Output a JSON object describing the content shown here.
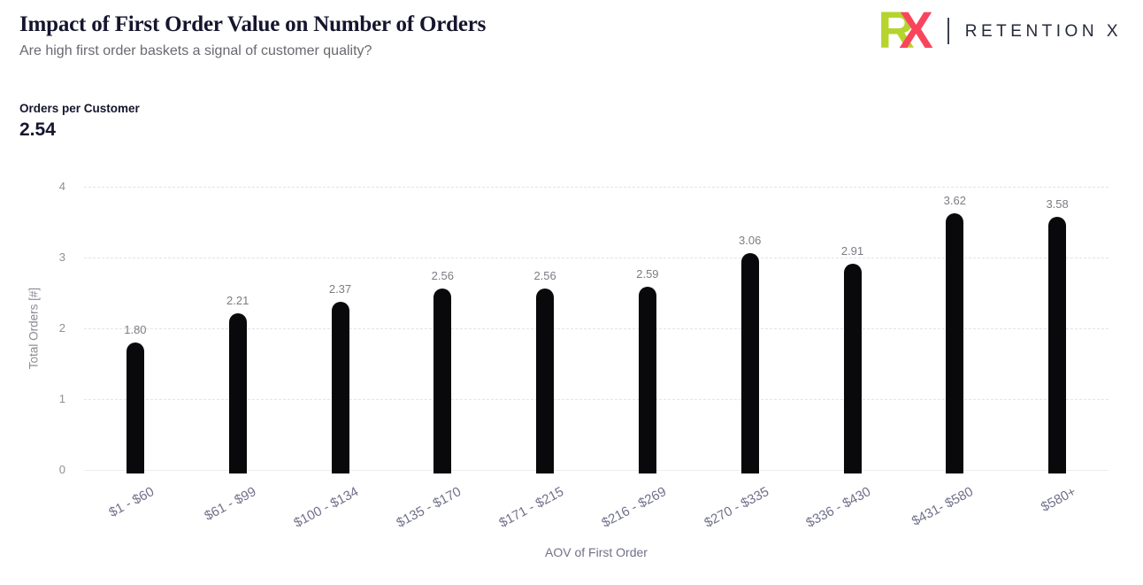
{
  "header": {
    "title": "Impact of First Order Value on Number of Orders",
    "subtitle": "Are high first order baskets a signal of customer quality?"
  },
  "logo": {
    "letter_r": "R",
    "letter_x": "X",
    "brand_text": "RETENTION X",
    "green": "#b5d42d",
    "pink": "#f9455c",
    "text_color": "#252a38"
  },
  "kpi": {
    "label": "Orders per Customer",
    "value": "2.54"
  },
  "chart_data": {
    "type": "bar",
    "title": "Impact of First Order Value on Number of Orders",
    "categories": [
      "$1 - $60",
      "$61 - $99",
      "$100 - $134",
      "$135 - $170",
      "$171 - $215",
      "$216 - $269",
      "$270 - $335",
      "$336 - $430",
      "$431- $580",
      "$580+"
    ],
    "values": [
      1.8,
      2.21,
      2.37,
      2.56,
      2.56,
      2.59,
      3.06,
      2.91,
      3.62,
      3.58
    ],
    "value_labels": [
      "1.80",
      "2.21",
      "2.37",
      "2.56",
      "2.56",
      "2.59",
      "3.06",
      "2.91",
      "3.62",
      "3.58"
    ],
    "xlabel": "AOV of First Order",
    "ylabel": "Total Orders [#]",
    "yticks": [
      0,
      1,
      2,
      3,
      4
    ],
    "ylim": [
      0,
      4
    ],
    "grid": "horizontal-dashed",
    "legend": "none",
    "bar_color": "#09090b",
    "label_color": "#7c7c83",
    "axis_text_color": "#70708a"
  }
}
